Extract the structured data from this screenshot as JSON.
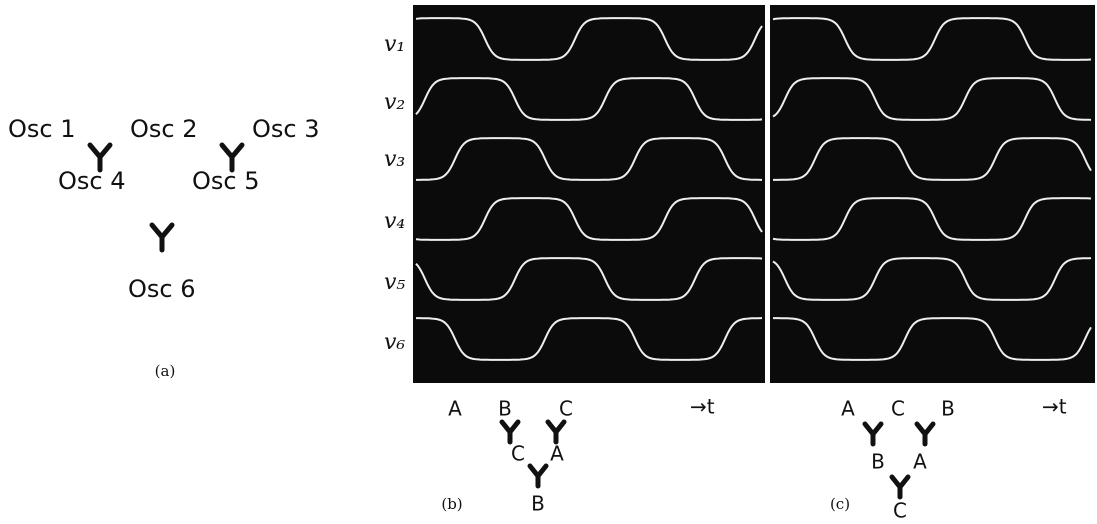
{
  "panel_a": {
    "oscillators": [
      "Osc 1",
      "Osc 2",
      "Osc 3",
      "Osc 4",
      "Osc 5",
      "Osc 6"
    ],
    "label": "(a)"
  },
  "panel_b": {
    "traces": [
      "v₁",
      "v₂",
      "v₃",
      "v₄",
      "v₅",
      "v₆"
    ],
    "junctions": {
      "top": [
        "A",
        "B",
        "C"
      ],
      "middle": [
        "C",
        "A"
      ],
      "bottom": "B"
    },
    "time_label": "→t",
    "label": "(b)"
  },
  "panel_c": {
    "junctions": {
      "top": [
        "A",
        "C",
        "B"
      ],
      "middle": [
        "B",
        "A"
      ],
      "bottom": "C"
    },
    "time_label": "→t",
    "label": "(c)"
  }
}
